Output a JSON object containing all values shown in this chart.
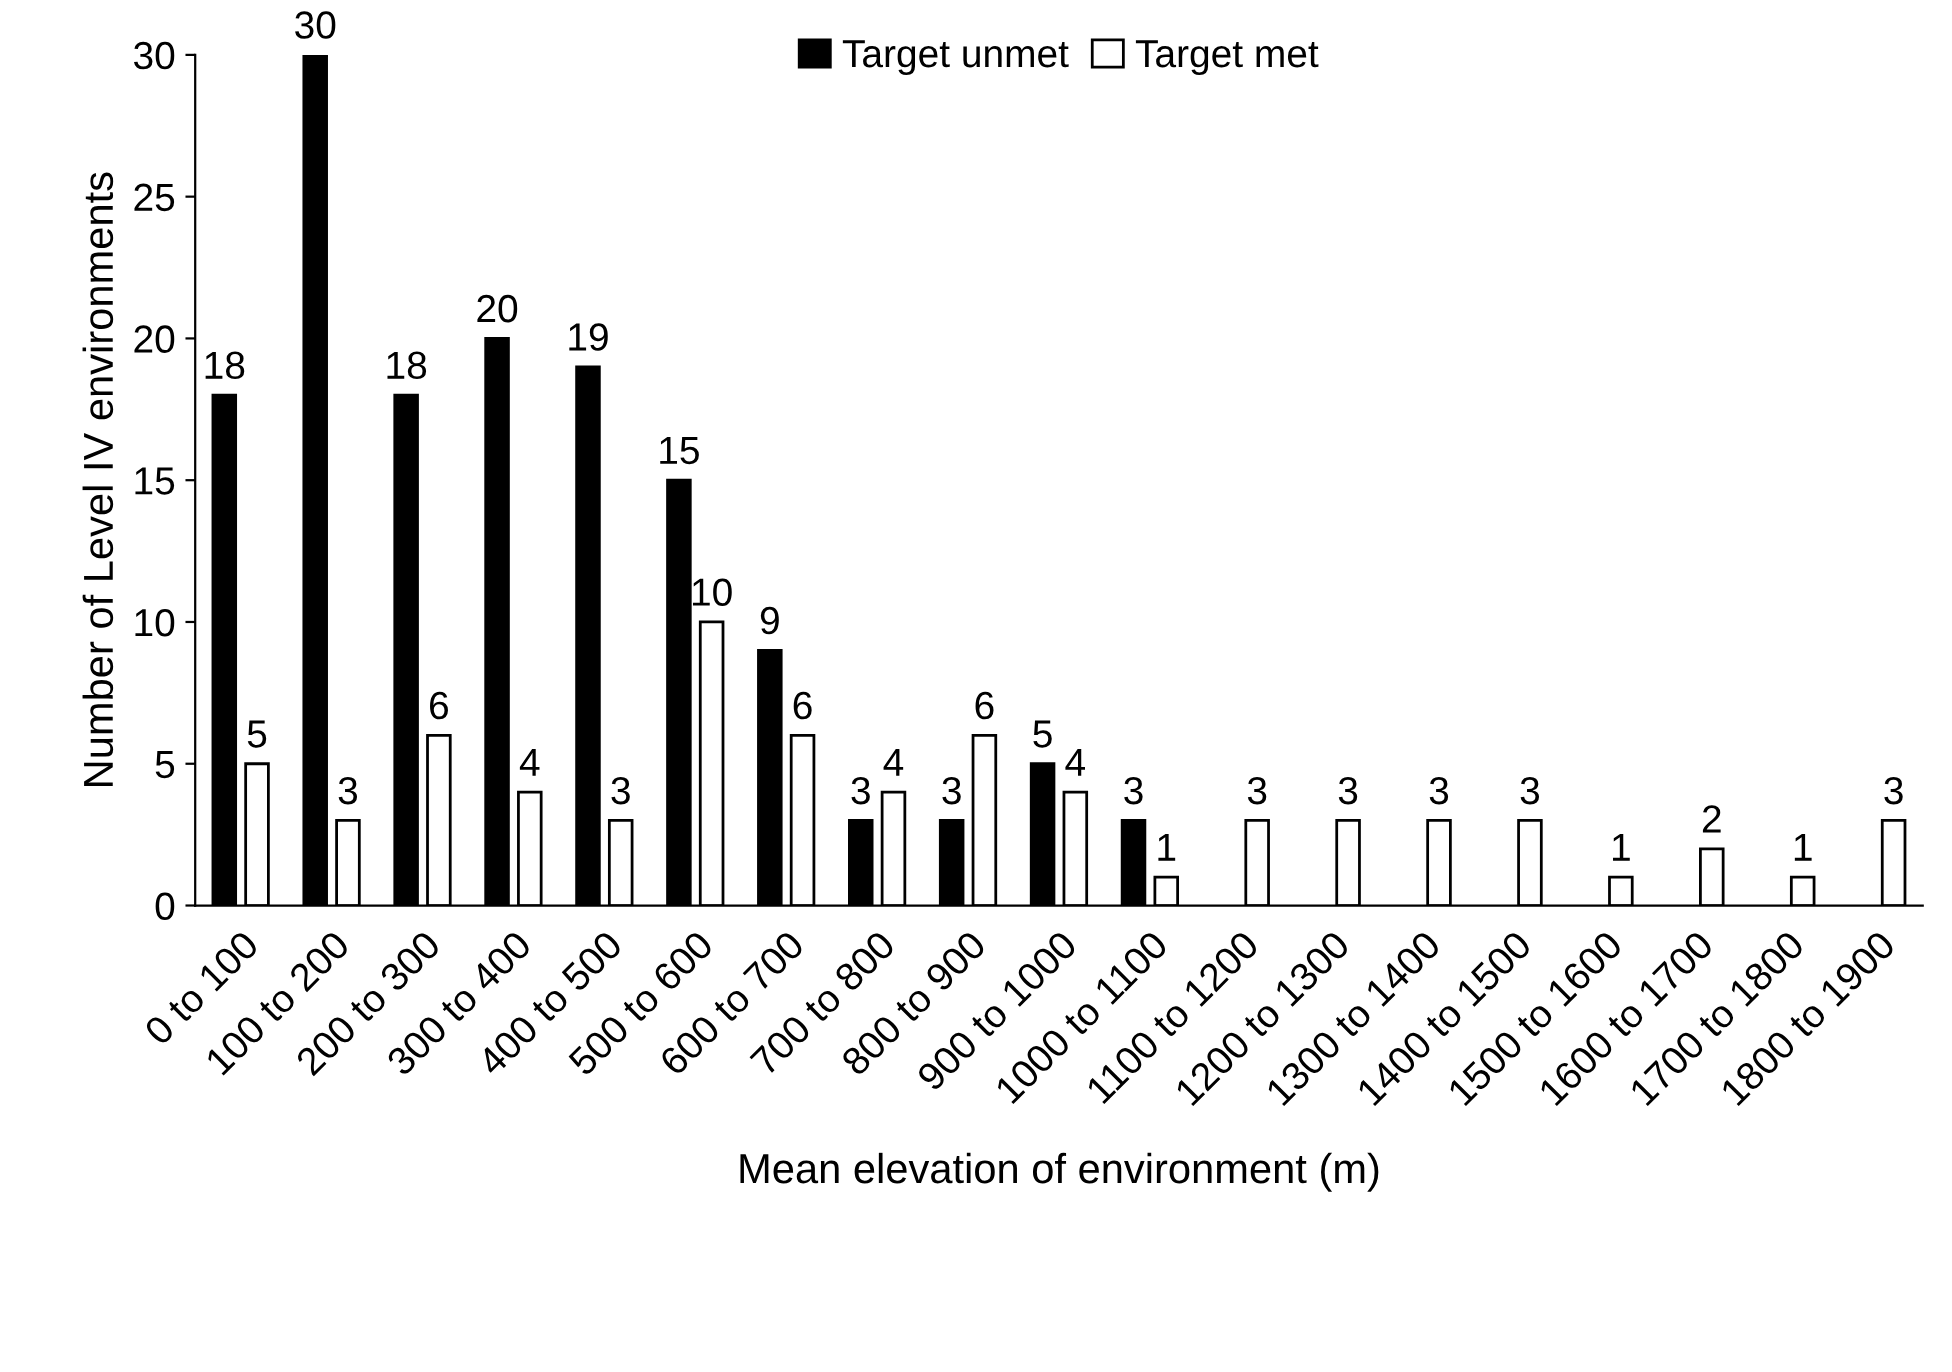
{
  "chart_data": {
    "type": "bar",
    "xlabel": "Mean elevation of environment (m)",
    "ylabel": "Number of Level IV environments",
    "categories": [
      "0 to 100",
      "100 to 200",
      "200 to 300",
      "300 to 400",
      "400 to 500",
      "500 to 600",
      "600 to 700",
      "700 to 800",
      "800 to 900",
      "900 to 1000",
      "1000 to 1100",
      "1100 to 1200",
      "1200 to 1300",
      "1300 to 1400",
      "1400 to 1500",
      "1500 to 1600",
      "1600 to 1700",
      "1700 to 1800",
      "1800 to 1900"
    ],
    "series": [
      {
        "name": "Target unmet",
        "color": "#000000",
        "values": [
          18,
          30,
          18,
          20,
          19,
          15,
          9,
          3,
          3,
          5,
          3,
          null,
          null,
          null,
          null,
          null,
          null,
          null,
          null
        ]
      },
      {
        "name": "Target met",
        "color": "#ffffff",
        "values": [
          5,
          3,
          6,
          4,
          3,
          10,
          6,
          4,
          6,
          4,
          1,
          3,
          3,
          3,
          3,
          1,
          2,
          1,
          3
        ]
      }
    ],
    "ylim": [
      0,
      30
    ],
    "yticks": [
      0,
      5,
      10,
      15,
      20,
      25,
      30
    ],
    "data_labels": true,
    "legend": "top",
    "grid": false
  }
}
